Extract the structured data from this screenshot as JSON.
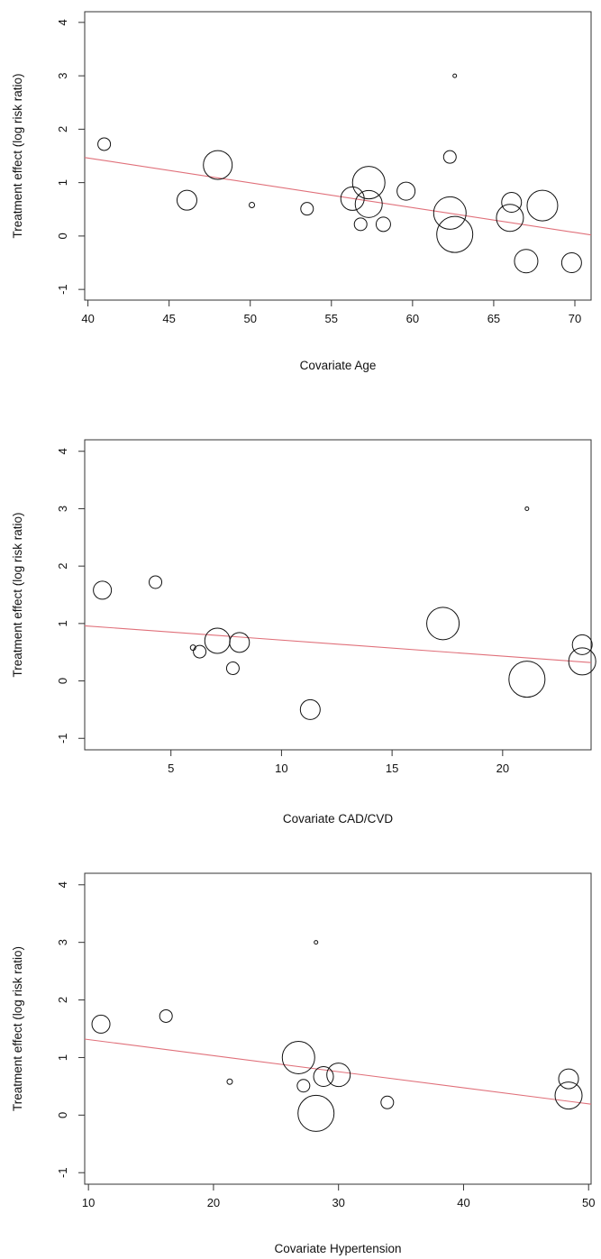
{
  "colors": {
    "regression_line": "#e0707a",
    "points": "#111111",
    "frame": "#333333"
  },
  "chart_data": [
    {
      "type": "scatter",
      "title": "",
      "xlabel": "Covariate Age",
      "ylabel": "Treatment effect (log risk ratio)",
      "xlim": [
        39.8,
        71
      ],
      "ylim": [
        -1.2,
        4.2
      ],
      "xticks": [
        40,
        45,
        50,
        55,
        60,
        65,
        70
      ],
      "yticks": [
        -1,
        0,
        1,
        2,
        3,
        4
      ],
      "grid": false,
      "legend": "none",
      "points": [
        {
          "x": 41.0,
          "y": 1.72,
          "size": 7
        },
        {
          "x": 46.1,
          "y": 0.67,
          "size": 11
        },
        {
          "x": 48.0,
          "y": 1.33,
          "size": 16
        },
        {
          "x": 50.1,
          "y": 0.58,
          "size": 3
        },
        {
          "x": 53.5,
          "y": 0.51,
          "size": 7
        },
        {
          "x": 56.3,
          "y": 0.7,
          "size": 13
        },
        {
          "x": 56.8,
          "y": 0.22,
          "size": 7
        },
        {
          "x": 57.3,
          "y": 1.0,
          "size": 18
        },
        {
          "x": 57.3,
          "y": 0.6,
          "size": 15
        },
        {
          "x": 58.2,
          "y": 0.22,
          "size": 8
        },
        {
          "x": 59.6,
          "y": 0.84,
          "size": 10
        },
        {
          "x": 62.3,
          "y": 1.48,
          "size": 7
        },
        {
          "x": 62.3,
          "y": 0.43,
          "size": 18
        },
        {
          "x": 62.6,
          "y": 3.0,
          "size": 2
        },
        {
          "x": 62.6,
          "y": 0.03,
          "size": 20
        },
        {
          "x": 66.1,
          "y": 0.63,
          "size": 11
        },
        {
          "x": 66.0,
          "y": 0.34,
          "size": 15
        },
        {
          "x": 67.0,
          "y": -0.47,
          "size": 13
        },
        {
          "x": 68.0,
          "y": 0.57,
          "size": 17
        },
        {
          "x": 69.8,
          "y": -0.5,
          "size": 11
        }
      ],
      "regression": {
        "x": [
          39.8,
          71
        ],
        "y": [
          1.47,
          0.02
        ]
      }
    },
    {
      "type": "scatter",
      "title": "",
      "xlabel": "Covariate CAD/CVD",
      "ylabel": "Treatment effect (log risk ratio)",
      "xlim": [
        1.1,
        24.0
      ],
      "ylim": [
        -1.2,
        4.2
      ],
      "xticks": [
        5,
        10,
        15,
        20
      ],
      "yticks": [
        -1,
        0,
        1,
        2,
        3,
        4
      ],
      "grid": false,
      "legend": "none",
      "points": [
        {
          "x": 1.9,
          "y": 1.58,
          "size": 10
        },
        {
          "x": 4.3,
          "y": 1.72,
          "size": 7
        },
        {
          "x": 6.0,
          "y": 0.58,
          "size": 3
        },
        {
          "x": 6.3,
          "y": 0.51,
          "size": 7
        },
        {
          "x": 7.1,
          "y": 0.7,
          "size": 14
        },
        {
          "x": 7.8,
          "y": 0.22,
          "size": 7
        },
        {
          "x": 8.1,
          "y": 0.67,
          "size": 11
        },
        {
          "x": 11.3,
          "y": -0.5,
          "size": 11
        },
        {
          "x": 17.3,
          "y": 1.0,
          "size": 18
        },
        {
          "x": 21.1,
          "y": 3.0,
          "size": 2
        },
        {
          "x": 21.1,
          "y": 0.03,
          "size": 20
        },
        {
          "x": 23.6,
          "y": 0.63,
          "size": 11
        },
        {
          "x": 23.6,
          "y": 0.34,
          "size": 15
        }
      ],
      "regression": {
        "x": [
          1.1,
          24.0
        ],
        "y": [
          0.96,
          0.32
        ]
      }
    },
    {
      "type": "scatter",
      "title": "",
      "xlabel": "Covariate Hypertension",
      "ylabel": "Treatment effect (log risk ratio)",
      "xlim": [
        9.7,
        50.2
      ],
      "ylim": [
        -1.2,
        4.2
      ],
      "xticks": [
        10,
        20,
        30,
        40,
        50
      ],
      "yticks": [
        -1,
        0,
        1,
        2,
        3,
        4
      ],
      "grid": false,
      "legend": "none",
      "points": [
        {
          "x": 11.0,
          "y": 1.58,
          "size": 10
        },
        {
          "x": 16.2,
          "y": 1.72,
          "size": 7
        },
        {
          "x": 21.3,
          "y": 0.58,
          "size": 3
        },
        {
          "x": 26.8,
          "y": 1.0,
          "size": 18
        },
        {
          "x": 27.2,
          "y": 0.51,
          "size": 7
        },
        {
          "x": 28.2,
          "y": 3.0,
          "size": 2
        },
        {
          "x": 28.2,
          "y": 0.03,
          "size": 20
        },
        {
          "x": 28.8,
          "y": 0.67,
          "size": 11
        },
        {
          "x": 30.0,
          "y": 0.7,
          "size": 13
        },
        {
          "x": 33.9,
          "y": 0.22,
          "size": 7
        },
        {
          "x": 48.4,
          "y": 0.63,
          "size": 11
        },
        {
          "x": 48.4,
          "y": 0.34,
          "size": 15
        }
      ],
      "regression": {
        "x": [
          9.7,
          50.2
        ],
        "y": [
          1.32,
          0.19
        ]
      }
    }
  ]
}
